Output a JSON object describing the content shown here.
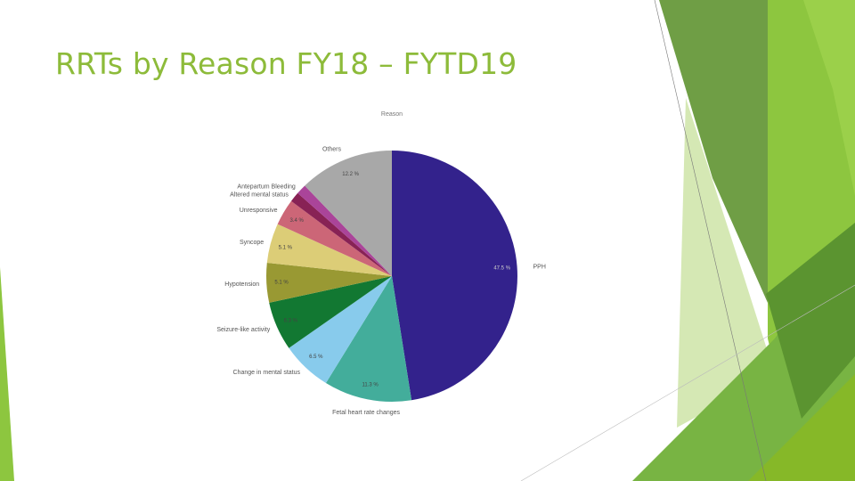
{
  "slide": {
    "title": "RRTs by Reason FY18 – FYTD19"
  },
  "theme": {
    "title_color": "#8dbb3a",
    "accent_greens": [
      "#8dc63f",
      "#6b9e3b",
      "#4f8a1e",
      "#d7e8b8"
    ]
  },
  "chart_data": {
    "type": "pie",
    "title": "Reason",
    "start_angle_deg": 0,
    "direction": "clockwise",
    "slices": [
      {
        "label": "PPH",
        "value": 47.5,
        "value_label": "47.5 %",
        "color": "#33228c"
      },
      {
        "label": "Fetal heart rate changes",
        "value": 11.3,
        "value_label": "11.3 %",
        "color": "#43ad9b"
      },
      {
        "label": "Change in mental status",
        "value": 6.5,
        "value_label": "6.5 %",
        "color": "#88cbec"
      },
      {
        "label": "Seizure-like activity",
        "value": 6.3,
        "value_label": "6.3 %",
        "color": "#127832"
      },
      {
        "label": "Hypotension",
        "value": 5.1,
        "value_label": "5.1 %",
        "color": "#999933"
      },
      {
        "label": "Syncope",
        "value": 5.1,
        "value_label": "5.1 %",
        "color": "#dccd77"
      },
      {
        "label": "Unresponsive",
        "value": 3.4,
        "value_label": "3.4 %",
        "color": "#cc6677"
      },
      {
        "label": "Altered mental status",
        "value": 1.3,
        "value_label": "",
        "color": "#882255"
      },
      {
        "label": "Antepartum Bleeding",
        "value": 1.3,
        "value_label": "",
        "color": "#aa4499"
      },
      {
        "label": "Others",
        "value": 12.2,
        "value_label": "12.2 %",
        "color": "#a8a8a8"
      }
    ]
  }
}
